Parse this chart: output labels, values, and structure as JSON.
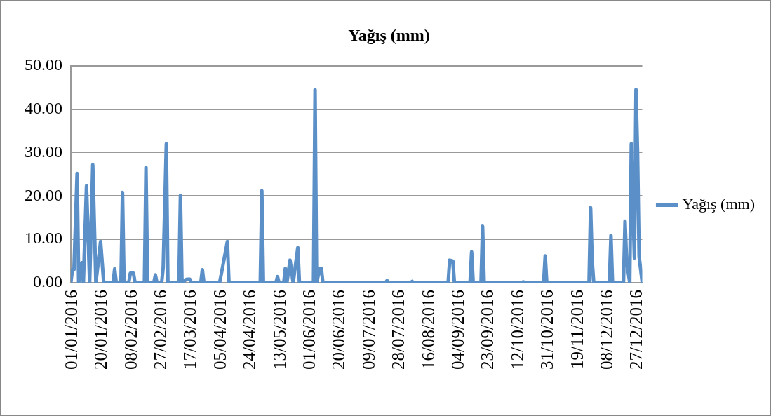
{
  "chart_data": {
    "type": "line",
    "title": "Yağış (mm)",
    "x": [
      "2016-01-01",
      "2016-01-02",
      "2016-01-03",
      "2016-01-05",
      "2016-01-06",
      "2016-01-08",
      "2016-01-09",
      "2016-01-11",
      "2016-01-13",
      "2016-01-15",
      "2016-01-17",
      "2016-01-20",
      "2016-01-22",
      "2016-01-28",
      "2016-01-29",
      "2016-01-30",
      "2016-02-02",
      "2016-02-03",
      "2016-02-04",
      "2016-02-07",
      "2016-02-08",
      "2016-02-10",
      "2016-02-11",
      "2016-02-17",
      "2016-02-18",
      "2016-02-19",
      "2016-02-23",
      "2016-02-24",
      "2016-02-25",
      "2016-02-28",
      "2016-02-29",
      "2016-03-02",
      "2016-03-03",
      "2016-03-10",
      "2016-03-11",
      "2016-03-12",
      "2016-03-15",
      "2016-03-17",
      "2016-03-18",
      "2016-03-24",
      "2016-03-25",
      "2016-03-26",
      "2016-04-05",
      "2016-04-06",
      "2016-04-10",
      "2016-04-11",
      "2016-05-01",
      "2016-05-02",
      "2016-05-03",
      "2016-05-11",
      "2016-05-12",
      "2016-05-13",
      "2016-05-16",
      "2016-05-17",
      "2016-05-18",
      "2016-05-20",
      "2016-05-22",
      "2016-05-25",
      "2016-05-26",
      "2016-06-04",
      "2016-06-05",
      "2016-06-06",
      "2016-06-08",
      "2016-06-09",
      "2016-06-10",
      "2016-07-20",
      "2016-07-21",
      "2016-07-22",
      "2016-08-05",
      "2016-08-06",
      "2016-08-07",
      "2016-08-29",
      "2016-08-30",
      "2016-09-01",
      "2016-09-02",
      "2016-09-12",
      "2016-09-13",
      "2016-09-14",
      "2016-09-19",
      "2016-09-20",
      "2016-09-21",
      "2016-10-15",
      "2016-10-16",
      "2016-10-17",
      "2016-10-29",
      "2016-10-30",
      "2016-10-31",
      "2016-11-27",
      "2016-11-28",
      "2016-11-29",
      "2016-11-30",
      "2016-12-10",
      "2016-12-11",
      "2016-12-12",
      "2016-12-19",
      "2016-12-20",
      "2016-12-21",
      "2016-12-23",
      "2016-12-24",
      "2016-12-26",
      "2016-12-27",
      "2016-12-28",
      "2016-12-29",
      "2016-12-31"
    ],
    "series": [
      {
        "name": "Yağış (mm)",
        "color": "#5b8fc7",
        "values": [
          0,
          3.0,
          3.0,
          25.2,
          0,
          4.6,
          0,
          22.3,
          0,
          27.2,
          0,
          9.5,
          0,
          0,
          3.2,
          0,
          0,
          20.8,
          0,
          0,
          2.2,
          2.2,
          0,
          0,
          26.6,
          0,
          0,
          1.8,
          0,
          0,
          3.5,
          32.0,
          0,
          0,
          20.1,
          0,
          0.8,
          0.8,
          0,
          0,
          3.0,
          0,
          0,
          1.8,
          9.5,
          0,
          0,
          21.2,
          0,
          0,
          1.4,
          0,
          0,
          3.3,
          0,
          5.2,
          0,
          8.1,
          0,
          0,
          44.5,
          0,
          3.3,
          3.3,
          0,
          0,
          0.5,
          0,
          0,
          0.3,
          0,
          0,
          5.2,
          5.0,
          0,
          0,
          7.1,
          0,
          0,
          13.0,
          0,
          0,
          0.2,
          0,
          0,
          6.2,
          0,
          0,
          17.3,
          5.0,
          0,
          0,
          10.9,
          0,
          0,
          14.2,
          5.0,
          0,
          32.0,
          5.7,
          44.5,
          30.0,
          6.0,
          0
        ]
      }
    ],
    "xlim": [
      "2016-01-01",
      "2016-12-31"
    ],
    "xticks": [
      {
        "value": "2016-01-01",
        "label": "01/01/2016"
      },
      {
        "value": "2016-01-20",
        "label": "20/01/2016"
      },
      {
        "value": "2016-02-08",
        "label": "08/02/2016"
      },
      {
        "value": "2016-02-27",
        "label": "27/02/2016"
      },
      {
        "value": "2016-03-17",
        "label": "17/03/2016"
      },
      {
        "value": "2016-04-05",
        "label": "05/04/2016"
      },
      {
        "value": "2016-04-24",
        "label": "24/04/2016"
      },
      {
        "value": "2016-05-13",
        "label": "13/05/2016"
      },
      {
        "value": "2016-06-01",
        "label": "01/06/2016"
      },
      {
        "value": "2016-06-20",
        "label": "20/06/2016"
      },
      {
        "value": "2016-07-09",
        "label": "09/07/2016"
      },
      {
        "value": "2016-07-28",
        "label": "28/07/2016"
      },
      {
        "value": "2016-08-16",
        "label": "16/08/2016"
      },
      {
        "value": "2016-09-04",
        "label": "04/09/2016"
      },
      {
        "value": "2016-09-23",
        "label": "23/09/2016"
      },
      {
        "value": "2016-10-12",
        "label": "12/10/2016"
      },
      {
        "value": "2016-10-31",
        "label": "31/10/2016"
      },
      {
        "value": "2016-11-19",
        "label": "19/11/2016"
      },
      {
        "value": "2016-12-08",
        "label": "08/12/2016"
      },
      {
        "value": "2016-12-27",
        "label": "27/12/2016"
      }
    ],
    "ylim": [
      0,
      50
    ],
    "yticks": [
      {
        "value": 0,
        "label": "0.00"
      },
      {
        "value": 10,
        "label": "10.00"
      },
      {
        "value": 20,
        "label": "20.00"
      },
      {
        "value": 30,
        "label": "30.00"
      },
      {
        "value": 40,
        "label": "40.00"
      },
      {
        "value": 50,
        "label": "50.00"
      }
    ],
    "grid": "y",
    "legend": "right",
    "marker": "none",
    "line_style": "solid"
  }
}
